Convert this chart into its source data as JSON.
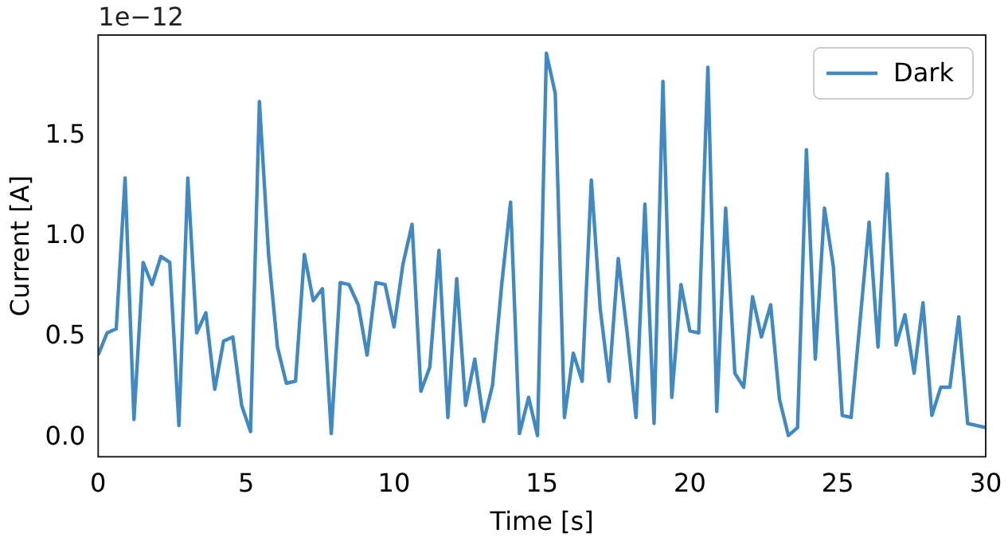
{
  "chart_data": {
    "type": "line",
    "xlabel": "Time [s]",
    "ylabel": "Current [A]",
    "annotations": [
      "1e−12"
    ],
    "x": [
      0,
      0.3,
      0.61,
      0.91,
      1.21,
      1.52,
      1.82,
      2.12,
      2.42,
      2.73,
      3.03,
      3.33,
      3.64,
      3.94,
      4.24,
      4.55,
      4.85,
      5.15,
      5.45,
      5.76,
      6.06,
      6.36,
      6.67,
      6.97,
      7.27,
      7.58,
      7.88,
      8.18,
      8.48,
      8.79,
      9.09,
      9.39,
      9.7,
      10,
      10.3,
      10.61,
      10.91,
      11.21,
      11.52,
      11.82,
      12.12,
      12.42,
      12.73,
      13.03,
      13.33,
      13.64,
      13.94,
      14.24,
      14.55,
      14.85,
      15.15,
      15.45,
      15.76,
      16.06,
      16.36,
      16.67,
      16.97,
      17.27,
      17.58,
      17.88,
      18.18,
      18.48,
      18.79,
      19.09,
      19.39,
      19.7,
      20,
      20.3,
      20.61,
      20.91,
      21.21,
      21.52,
      21.82,
      22.12,
      22.42,
      22.73,
      23.03,
      23.33,
      23.64,
      23.94,
      24.24,
      24.55,
      24.85,
      25.15,
      25.45,
      25.76,
      26.06,
      26.36,
      26.67,
      26.97,
      27.27,
      27.58,
      27.88,
      28.18,
      28.48,
      28.79,
      29.09,
      29.39,
      29.7,
      30
    ],
    "series": [
      {
        "name": "Dark",
        "color": "#3f8ac4",
        "values": [
          0.41,
          0.52,
          0.54,
          1.29,
          0.09,
          0.87,
          0.76,
          0.9,
          0.87,
          0.06,
          1.29,
          0.52,
          0.62,
          0.24,
          0.48,
          0.5,
          0.16,
          0.03,
          1.67,
          0.91,
          0.45,
          0.27,
          0.28,
          0.91,
          0.68,
          0.74,
          0.02,
          0.77,
          0.76,
          0.66,
          0.41,
          0.77,
          0.76,
          0.55,
          0.86,
          1.06,
          0.23,
          0.35,
          0.93,
          0.1,
          0.79,
          0.16,
          0.39,
          0.08,
          0.26,
          0.76,
          1.17,
          0.02,
          0.2,
          0.01,
          1.91,
          1.71,
          0.1,
          0.42,
          0.28,
          1.28,
          0.64,
          0.28,
          0.89,
          0.52,
          0.1,
          1.16,
          0.07,
          1.77,
          0.2,
          0.76,
          0.53,
          0.52,
          1.84,
          0.13,
          1.14,
          0.32,
          0.25,
          0.7,
          0.5,
          0.66,
          0.19,
          0.01,
          0.05,
          1.43,
          0.39,
          1.14,
          0.85,
          0.11,
          0.1,
          0.59,
          1.07,
          0.45,
          1.31,
          0.46,
          0.61,
          0.32,
          0.67,
          0.11,
          0.25,
          0.25,
          0.6,
          0.07,
          0.06,
          0.05
        ]
      }
    ],
    "xlim": [
      0,
      30
    ],
    "xticks": [
      0,
      5,
      10,
      15,
      20,
      25,
      30
    ],
    "ylim": [
      -0.095,
      2
    ],
    "yticks": [
      {
        "value": 0,
        "label": "0.0"
      },
      0.5,
      {
        "value": 1,
        "label": "1.0"
      },
      1.5
    ],
    "legend": "top right",
    "line_style": "solid",
    "marker": "none"
  }
}
